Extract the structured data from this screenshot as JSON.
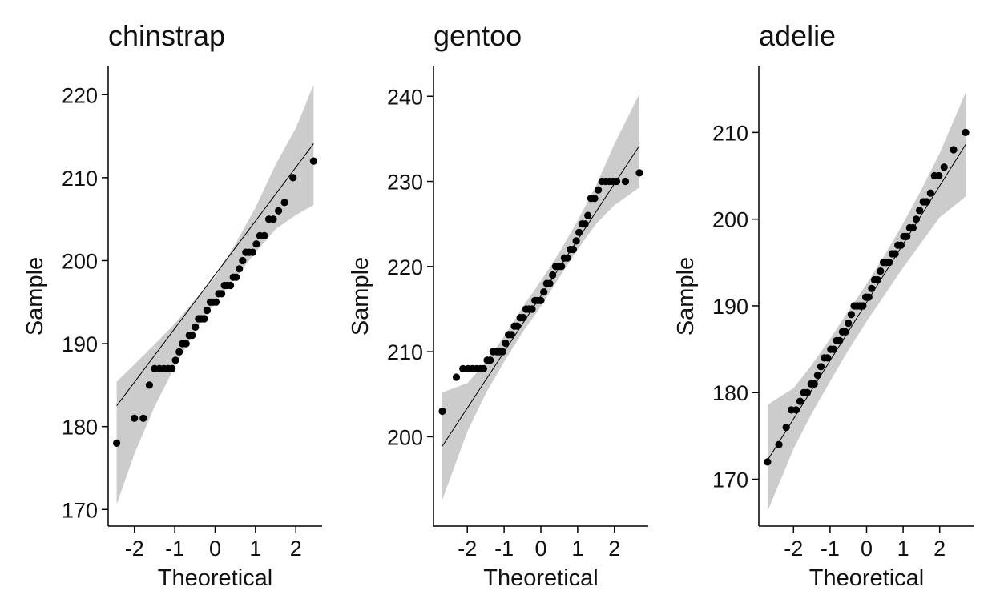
{
  "chart_data": [
    {
      "type": "scatter",
      "title": "chinstrap",
      "xlabel": "Theoretical",
      "ylabel": "Sample",
      "xlim": [
        -2.65,
        2.65
      ],
      "ylim": [
        168,
        223.5
      ],
      "xticks": [
        -2,
        -1,
        0,
        1,
        2
      ],
      "yticks": [
        170,
        180,
        190,
        200,
        210,
        220
      ],
      "grid": false,
      "reference_line": [
        [
          -2.44,
          182.5
        ],
        [
          2.44,
          214.1
        ]
      ],
      "confidence_band": [
        {
          "x": -2.44,
          "lo": 170.6,
          "hi": 185.4
        },
        {
          "x": -2.0,
          "lo": 176.7,
          "hi": 187.5
        },
        {
          "x": -1.5,
          "lo": 182.4,
          "hi": 189.9
        },
        {
          "x": -1.0,
          "lo": 187.2,
          "hi": 192.4
        },
        {
          "x": -0.5,
          "lo": 191.5,
          "hi": 195.3
        },
        {
          "x": 0.0,
          "lo": 195.0,
          "hi": 198.0
        },
        {
          "x": 0.5,
          "lo": 197.9,
          "hi": 202.0
        },
        {
          "x": 1.0,
          "lo": 201.0,
          "hi": 206.4
        },
        {
          "x": 1.5,
          "lo": 203.8,
          "hi": 211.6
        },
        {
          "x": 2.0,
          "lo": 205.5,
          "hi": 216.0
        },
        {
          "x": 2.44,
          "lo": 206.7,
          "hi": 221.2
        }
      ],
      "points": {
        "x": [
          -2.44,
          -2.0,
          -1.78,
          -1.63,
          -1.5,
          -1.38,
          -1.27,
          -1.17,
          -1.07,
          -0.98,
          -0.89,
          -0.81,
          -0.72,
          -0.64,
          -0.57,
          -0.49,
          -0.41,
          -0.34,
          -0.27,
          -0.2,
          -0.12,
          -0.05,
          0.02,
          0.09,
          0.16,
          0.23,
          0.3,
          0.38,
          0.45,
          0.52,
          0.6,
          0.68,
          0.76,
          0.84,
          0.93,
          1.02,
          1.11,
          1.22,
          1.33,
          1.44,
          1.57,
          1.72,
          1.93,
          2.44
        ],
        "y": [
          178,
          181,
          181,
          185,
          187,
          187,
          187,
          187,
          187,
          188,
          189,
          190,
          190,
          191,
          191,
          192,
          193,
          193,
          193,
          194,
          195,
          195,
          195,
          196,
          196,
          197,
          197,
          197,
          198,
          198,
          199,
          200,
          201,
          201,
          201,
          202,
          203,
          203,
          205,
          205,
          206,
          207,
          210,
          212
        ]
      }
    },
    {
      "type": "scatter",
      "title": "gentoo",
      "xlabel": "Theoretical",
      "ylabel": "Sample",
      "xlim": [
        -2.92,
        2.92
      ],
      "ylim": [
        189.5,
        243.6
      ],
      "xticks": [
        -2,
        -1,
        0,
        1,
        2
      ],
      "yticks": [
        200,
        210,
        220,
        230,
        240
      ],
      "grid": false,
      "reference_line": [
        [
          -2.68,
          198.9
        ],
        [
          2.68,
          234.2
        ]
      ],
      "confidence_band": [
        {
          "x": -2.68,
          "lo": 192.6,
          "hi": 205.2
        },
        {
          "x": -2.0,
          "lo": 200.6,
          "hi": 206.3
        },
        {
          "x": -1.5,
          "lo": 205.1,
          "hi": 208.7
        },
        {
          "x": -1.0,
          "lo": 208.8,
          "hi": 211.8
        },
        {
          "x": -0.5,
          "lo": 212.3,
          "hi": 215.2
        },
        {
          "x": 0.0,
          "lo": 215.3,
          "hi": 218.3
        },
        {
          "x": 0.5,
          "lo": 218.7,
          "hi": 221.6
        },
        {
          "x": 1.0,
          "lo": 222.0,
          "hi": 225.4
        },
        {
          "x": 1.5,
          "lo": 225.0,
          "hi": 229.5
        },
        {
          "x": 2.0,
          "lo": 227.2,
          "hi": 234.4
        },
        {
          "x": 2.68,
          "lo": 229.3,
          "hi": 240.3
        }
      ],
      "points": {
        "x": [
          -2.68,
          -2.3,
          -2.12,
          -1.98,
          -1.86,
          -1.75,
          -1.65,
          -1.56,
          -1.46,
          -1.38,
          -1.3,
          -1.2,
          -1.12,
          -1.04,
          -0.96,
          -0.88,
          -0.8,
          -0.72,
          -0.64,
          -0.56,
          -0.48,
          -0.4,
          -0.32,
          -0.24,
          -0.16,
          -0.08,
          0.0,
          0.08,
          0.16,
          0.24,
          0.32,
          0.4,
          0.48,
          0.56,
          0.64,
          0.72,
          0.8,
          0.88,
          0.96,
          1.04,
          1.12,
          1.2,
          1.28,
          1.36,
          1.46,
          1.56,
          1.66,
          1.76,
          1.86,
          1.96,
          2.06,
          2.3,
          2.68
        ],
        "y": [
          203,
          207,
          208,
          208,
          208,
          208,
          208,
          208,
          209,
          209,
          210,
          210,
          210,
          210,
          211,
          212,
          212,
          213,
          213,
          214,
          214,
          215,
          215,
          215,
          216,
          216,
          216,
          217,
          218,
          218,
          219,
          220,
          220,
          220,
          221,
          221,
          222,
          222,
          223,
          224,
          225,
          225,
          226,
          228,
          228,
          229,
          230,
          230,
          230,
          230,
          230,
          230,
          231
        ]
      }
    },
    {
      "type": "scatter",
      "title": "adelie",
      "xlabel": "Theoretical",
      "ylabel": "Sample",
      "xlim": [
        -2.95,
        2.95
      ],
      "ylim": [
        164.6,
        217.7
      ],
      "xticks": [
        -2,
        -1,
        0,
        1,
        2
      ],
      "yticks": [
        170,
        180,
        190,
        200,
        210
      ],
      "grid": false,
      "reference_line": [
        [
          -2.71,
          172.2
        ],
        [
          2.71,
          208.6
        ]
      ],
      "confidence_band": [
        {
          "x": -2.71,
          "lo": 166.3,
          "hi": 178.6
        },
        {
          "x": -2.0,
          "lo": 173.5,
          "hi": 180.5
        },
        {
          "x": -1.5,
          "lo": 177.6,
          "hi": 183.2
        },
        {
          "x": -1.0,
          "lo": 181.3,
          "hi": 186.2
        },
        {
          "x": -0.5,
          "lo": 184.9,
          "hi": 189.4
        },
        {
          "x": 0.0,
          "lo": 188.2,
          "hi": 192.5
        },
        {
          "x": 0.5,
          "lo": 191.3,
          "hi": 195.9
        },
        {
          "x": 1.0,
          "lo": 194.4,
          "hi": 199.5
        },
        {
          "x": 1.5,
          "lo": 197.3,
          "hi": 203.4
        },
        {
          "x": 2.0,
          "lo": 200.2,
          "hi": 207.6
        },
        {
          "x": 2.71,
          "lo": 202.6,
          "hi": 214.6
        }
      ],
      "points": {
        "x": [
          -2.71,
          -2.4,
          -2.2,
          -2.06,
          -1.93,
          -1.82,
          -1.72,
          -1.62,
          -1.52,
          -1.43,
          -1.34,
          -1.25,
          -1.16,
          -1.07,
          -0.98,
          -0.9,
          -0.82,
          -0.74,
          -0.66,
          -0.58,
          -0.5,
          -0.42,
          -0.34,
          -0.26,
          -0.18,
          -0.1,
          -0.02,
          0.06,
          0.14,
          0.22,
          0.3,
          0.38,
          0.46,
          0.54,
          0.62,
          0.7,
          0.78,
          0.86,
          0.94,
          1.02,
          1.1,
          1.18,
          1.27,
          1.36,
          1.45,
          1.55,
          1.65,
          1.75,
          1.86,
          1.98,
          2.12,
          2.38,
          2.71
        ],
        "y": [
          172,
          174,
          176,
          178,
          178,
          179,
          180,
          180,
          181,
          181,
          182,
          183,
          184,
          184,
          185,
          185,
          186,
          186,
          187,
          187,
          188,
          189,
          190,
          190,
          190,
          190,
          191,
          191,
          192,
          193,
          193,
          194,
          195,
          195,
          195,
          196,
          196,
          197,
          197,
          198,
          198,
          199,
          199,
          200,
          201,
          202,
          202,
          203,
          205,
          205,
          206,
          208,
          210
        ]
      }
    }
  ]
}
